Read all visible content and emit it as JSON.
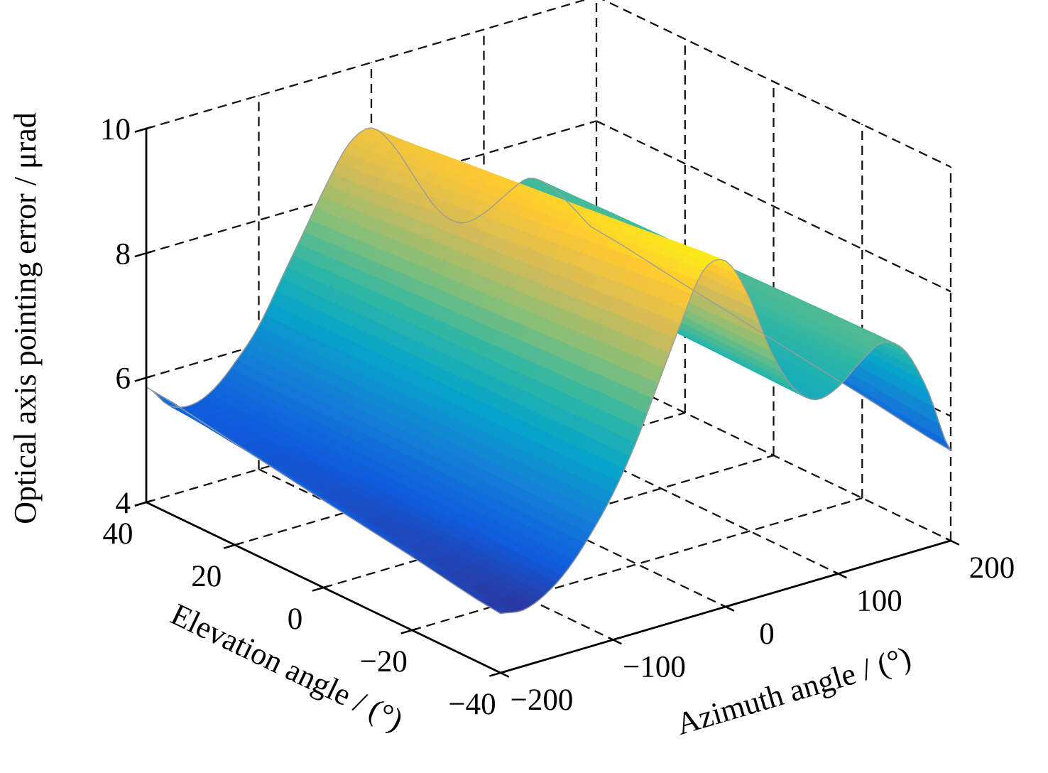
{
  "figure": {
    "background": "#ffffff",
    "axis_color": "#000000",
    "grid_line_color": "#141414",
    "surface_rim_color": "#9b9b9b"
  },
  "chart_data": {
    "type": "surface",
    "title": "",
    "xlabel": "Azimuth angle / (°)",
    "ylabel": "Elevation angle / (°)",
    "zlabel": "Optical axis pointing error / μrad",
    "x_ticks": [
      "−200",
      "−100",
      "0",
      "100",
      "200"
    ],
    "x_tick_values": [
      -200,
      -100,
      0,
      100,
      200
    ],
    "y_ticks": [
      "40",
      "20",
      "0",
      "−20",
      "−40"
    ],
    "y_tick_values": [
      40,
      20,
      0,
      -20,
      -40
    ],
    "z_ticks": [
      "4",
      "6",
      "8",
      "10"
    ],
    "z_tick_values": [
      4,
      6,
      8,
      10
    ],
    "x_range": [
      -200,
      200
    ],
    "y_range": [
      -40,
      40
    ],
    "z_range": [
      4,
      10
    ],
    "grid": "on",
    "grid_style": "dashed",
    "legend": "none",
    "azimuth": [
      -200,
      -180,
      -160,
      -140,
      -120,
      -100,
      -80,
      -60,
      -40,
      -20,
      0,
      20,
      40,
      60,
      80,
      100,
      120,
      140,
      160,
      180,
      200
    ],
    "elevation": [
      -40,
      -20,
      0,
      20,
      40
    ],
    "z_values": [
      [
        4.95,
        4.9,
        5.05,
        5.35,
        5.8,
        6.35,
        7.05,
        7.9,
        8.75,
        9.5,
        9.55,
        8.9,
        7.9,
        7.2,
        6.9,
        7.0,
        7.3,
        7.5,
        7.25,
        6.5,
        5.45
      ],
      [
        5.18,
        5.04,
        5.13,
        5.39,
        5.81,
        6.34,
        7.03,
        7.83,
        8.63,
        9.33,
        9.4,
        8.81,
        7.9,
        7.23,
        6.93,
        7.01,
        7.29,
        7.48,
        7.23,
        6.55,
        5.65
      ],
      [
        5.4,
        5.18,
        5.2,
        5.43,
        5.83,
        6.33,
        7.0,
        7.75,
        8.5,
        9.15,
        9.25,
        8.73,
        7.9,
        7.25,
        6.95,
        7.03,
        7.28,
        7.45,
        7.2,
        6.6,
        5.85
      ],
      [
        5.63,
        5.31,
        5.28,
        5.46,
        5.84,
        6.31,
        6.98,
        7.68,
        8.38,
        8.98,
        9.1,
        8.64,
        7.9,
        7.28,
        6.98,
        7.04,
        7.26,
        7.43,
        7.18,
        6.65,
        6.05
      ],
      [
        5.85,
        5.45,
        5.35,
        5.5,
        5.85,
        6.3,
        6.95,
        7.6,
        8.25,
        8.8,
        8.95,
        8.55,
        7.9,
        7.3,
        7.0,
        7.05,
        7.25,
        7.4,
        7.15,
        6.7,
        6.25
      ]
    ],
    "colormap": {
      "name": "parula",
      "stops": [
        "#352a87",
        "#0f5cdd",
        "#1481d6",
        "#06a4ca",
        "#2eb7a4",
        "#87bf77",
        "#d1bb59",
        "#fec832",
        "#f9fb0e"
      ]
    },
    "color_range": [
      4.7,
      9.8
    ]
  }
}
